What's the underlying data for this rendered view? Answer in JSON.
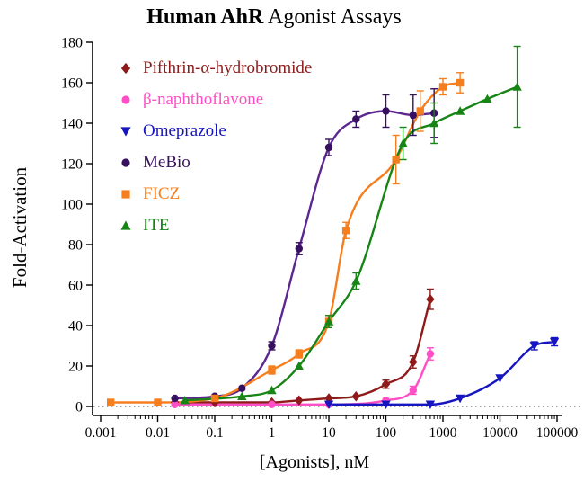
{
  "chart_data": {
    "type": "line",
    "title_bold": "Human AhR",
    "title_rest": " Agonist Assays",
    "xlabel": "[Agonists], nM",
    "ylabel": "Fold-Activation",
    "x_scale": "log",
    "xlim": [
      0.001,
      100000
    ],
    "ylim": [
      0,
      180
    ],
    "y_ticks": [
      0,
      20,
      40,
      60,
      80,
      100,
      120,
      140,
      160,
      180
    ],
    "x_ticks": [
      0.001,
      0.01,
      0.1,
      1,
      10,
      100,
      1000,
      10000,
      100000
    ],
    "x_tick_labels": [
      "0.001",
      "0.01",
      "0.1",
      "1",
      "10",
      "100",
      "1000",
      "10000",
      "100000"
    ],
    "baseline": 0,
    "grid": false,
    "legend_position": "upper-left-inside",
    "series": [
      {
        "name": "Pifthrin-α-hydrobromide",
        "color": "#8E1A1A",
        "marker": "diamond",
        "points": [
          [
            0.02,
            2,
            0
          ],
          [
            0.1,
            2,
            0
          ],
          [
            1,
            2,
            0
          ],
          [
            3,
            3,
            0
          ],
          [
            10,
            4,
            0
          ],
          [
            30,
            5,
            0
          ],
          [
            100,
            11,
            2
          ],
          [
            300,
            22,
            3
          ],
          [
            600,
            53,
            5
          ]
        ]
      },
      {
        "name": "β-naphthoflavone",
        "color": "#FF4FC6",
        "marker": "circle",
        "points": [
          [
            0.02,
            1,
            0
          ],
          [
            1,
            1,
            0
          ],
          [
            10,
            1,
            0
          ],
          [
            100,
            3,
            0
          ],
          [
            300,
            8,
            2
          ],
          [
            600,
            26,
            3
          ]
        ]
      },
      {
        "name": "Omeprazole",
        "color": "#1616C0",
        "marker": "triangle-down",
        "points": [
          [
            10,
            1,
            0
          ],
          [
            100,
            1,
            0
          ],
          [
            600,
            1,
            0
          ],
          [
            2000,
            4,
            0
          ],
          [
            10000,
            14,
            0
          ],
          [
            40000,
            30,
            2
          ],
          [
            90000,
            32,
            2
          ]
        ]
      },
      {
        "name": "MeBio",
        "color": "#371060",
        "line_color": "#5C2790",
        "marker": "circle",
        "points": [
          [
            0.02,
            4,
            0
          ],
          [
            0.1,
            5,
            0
          ],
          [
            0.3,
            9,
            0
          ],
          [
            1,
            30,
            2
          ],
          [
            3,
            78,
            3
          ],
          [
            10,
            128,
            4
          ],
          [
            30,
            142,
            4
          ],
          [
            100,
            146,
            8
          ],
          [
            300,
            144,
            10
          ],
          [
            700,
            145,
            12
          ]
        ]
      },
      {
        "name": "FICZ",
        "color": "#F57E1E",
        "marker": "square",
        "points": [
          [
            0.0015,
            2,
            0
          ],
          [
            0.01,
            2,
            0
          ],
          [
            0.1,
            4,
            0
          ],
          [
            1,
            18,
            2
          ],
          [
            3,
            26,
            2
          ],
          [
            10,
            42,
            3
          ],
          [
            20,
            87,
            4
          ],
          [
            150,
            122,
            12
          ],
          [
            400,
            146,
            10
          ],
          [
            1000,
            158,
            4
          ],
          [
            2000,
            160,
            5
          ]
        ]
      },
      {
        "name": "ITE",
        "color": "#168516",
        "marker": "triangle-up",
        "points": [
          [
            0.03,
            3,
            0
          ],
          [
            0.3,
            5,
            0
          ],
          [
            1,
            8,
            0
          ],
          [
            3,
            20,
            0
          ],
          [
            10,
            42,
            3
          ],
          [
            30,
            62,
            4
          ],
          [
            200,
            130,
            8
          ],
          [
            700,
            140,
            10
          ],
          [
            2000,
            146,
            0
          ],
          [
            6000,
            152,
            0
          ],
          [
            20000,
            158,
            20
          ]
        ]
      }
    ]
  }
}
